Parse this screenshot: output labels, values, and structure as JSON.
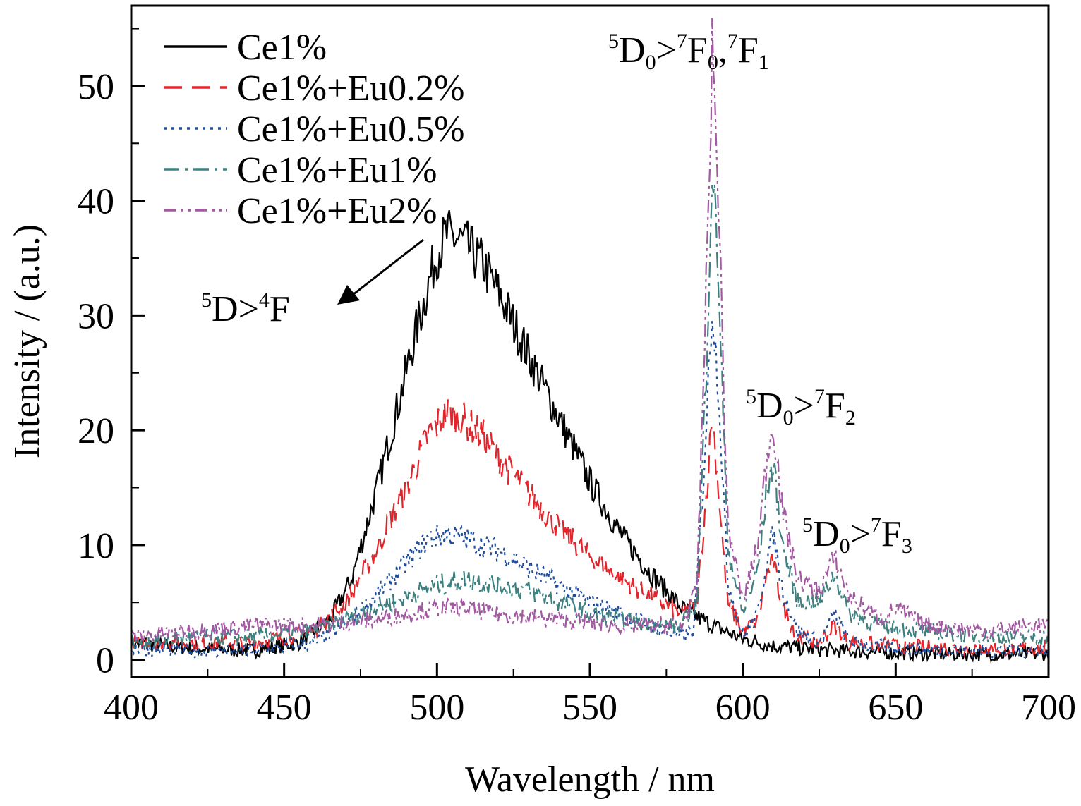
{
  "chart_data": {
    "type": "line",
    "title": "",
    "xlabel": "Wavelength / nm",
    "ylabel": "Intensity / (a.u.)",
    "xlim": [
      400,
      700
    ],
    "ylim": [
      -1.5,
      57
    ],
    "x_ticks": [
      400,
      450,
      500,
      550,
      600,
      650,
      700
    ],
    "y_ticks": [
      0,
      10,
      20,
      30,
      40,
      50
    ],
    "grid": false,
    "legend_position": "top-left",
    "series": [
      {
        "name": "Ce1%",
        "color": "#000000",
        "style": "solid",
        "points": [
          [
            400,
            1.5
          ],
          [
            420,
            1.0
          ],
          [
            440,
            0.8
          ],
          [
            455,
            1.5
          ],
          [
            465,
            3.5
          ],
          [
            472,
            7.0
          ],
          [
            480,
            14.5
          ],
          [
            488,
            23.0
          ],
          [
            494,
            29.5
          ],
          [
            500,
            35.5
          ],
          [
            503,
            37.0
          ],
          [
            508,
            36.5
          ],
          [
            515,
            34.5
          ],
          [
            522,
            31.0
          ],
          [
            530,
            26.5
          ],
          [
            540,
            21.0
          ],
          [
            550,
            15.5
          ],
          [
            560,
            11.0
          ],
          [
            570,
            7.5
          ],
          [
            580,
            4.5
          ],
          [
            590,
            3.0
          ],
          [
            600,
            1.8
          ],
          [
            610,
            1.2
          ],
          [
            630,
            0.8
          ],
          [
            650,
            0.6
          ],
          [
            670,
            0.5
          ],
          [
            700,
            0.5
          ]
        ]
      },
      {
        "name": "Ce1%+Eu0.2%",
        "color": "#e3242b",
        "style": "dashed",
        "points": [
          [
            400,
            1.5
          ],
          [
            420,
            1.5
          ],
          [
            440,
            1.5
          ],
          [
            460,
            2.5
          ],
          [
            470,
            5.0
          ],
          [
            480,
            9.5
          ],
          [
            490,
            15.0
          ],
          [
            497,
            19.5
          ],
          [
            503,
            21.5
          ],
          [
            508,
            21.0
          ],
          [
            515,
            19.5
          ],
          [
            522,
            17.0
          ],
          [
            530,
            14.5
          ],
          [
            540,
            11.5
          ],
          [
            550,
            9.0
          ],
          [
            560,
            7.0
          ],
          [
            570,
            5.5
          ],
          [
            580,
            4.0
          ],
          [
            585,
            5.0
          ],
          [
            588,
            14.0
          ],
          [
            590,
            21.5
          ],
          [
            592,
            15.0
          ],
          [
            595,
            5.0
          ],
          [
            600,
            2.5
          ],
          [
            605,
            3.5
          ],
          [
            608,
            7.5
          ],
          [
            610,
            8.5
          ],
          [
            613,
            4.5
          ],
          [
            618,
            2.0
          ],
          [
            625,
            1.5
          ],
          [
            630,
            3.0
          ],
          [
            635,
            1.5
          ],
          [
            650,
            1.2
          ],
          [
            670,
            1.0
          ],
          [
            700,
            1.0
          ]
        ]
      },
      {
        "name": "Ce1%+Eu0.5%",
        "color": "#1f4e9c",
        "style": "dotted",
        "points": [
          [
            400,
            1.0
          ],
          [
            420,
            0.8
          ],
          [
            440,
            0.8
          ],
          [
            460,
            1.5
          ],
          [
            470,
            3.0
          ],
          [
            480,
            5.5
          ],
          [
            490,
            8.5
          ],
          [
            497,
            10.5
          ],
          [
            503,
            11.0
          ],
          [
            510,
            10.5
          ],
          [
            520,
            9.5
          ],
          [
            530,
            8.0
          ],
          [
            540,
            6.5
          ],
          [
            550,
            5.0
          ],
          [
            560,
            4.0
          ],
          [
            570,
            3.0
          ],
          [
            580,
            2.0
          ],
          [
            584,
            2.5
          ],
          [
            587,
            15.0
          ],
          [
            590,
            31.0
          ],
          [
            592,
            24.0
          ],
          [
            595,
            7.0
          ],
          [
            600,
            2.0
          ],
          [
            605,
            4.0
          ],
          [
            608,
            9.0
          ],
          [
            610,
            11.0
          ],
          [
            613,
            6.0
          ],
          [
            618,
            2.5
          ],
          [
            625,
            1.5
          ],
          [
            630,
            4.0
          ],
          [
            635,
            1.5
          ],
          [
            650,
            1.0
          ],
          [
            670,
            0.8
          ],
          [
            700,
            0.8
          ]
        ]
      },
      {
        "name": "Ce1%+Eu1%",
        "color": "#3e8080",
        "style": "dashdot",
        "points": [
          [
            400,
            1.5
          ],
          [
            420,
            2.0
          ],
          [
            440,
            2.0
          ],
          [
            460,
            2.5
          ],
          [
            470,
            3.5
          ],
          [
            480,
            4.5
          ],
          [
            490,
            5.5
          ],
          [
            500,
            6.5
          ],
          [
            510,
            7.0
          ],
          [
            520,
            6.5
          ],
          [
            530,
            6.0
          ],
          [
            540,
            5.0
          ],
          [
            550,
            4.0
          ],
          [
            560,
            3.5
          ],
          [
            570,
            3.0
          ],
          [
            580,
            3.0
          ],
          [
            585,
            5.0
          ],
          [
            588,
            25.0
          ],
          [
            590,
            43.0
          ],
          [
            592,
            34.0
          ],
          [
            595,
            10.0
          ],
          [
            600,
            4.0
          ],
          [
            605,
            8.0
          ],
          [
            608,
            15.0
          ],
          [
            610,
            17.0
          ],
          [
            613,
            10.0
          ],
          [
            618,
            5.0
          ],
          [
            625,
            5.0
          ],
          [
            630,
            7.5
          ],
          [
            635,
            4.0
          ],
          [
            645,
            3.0
          ],
          [
            660,
            2.5
          ],
          [
            680,
            2.0
          ],
          [
            700,
            2.0
          ]
        ]
      },
      {
        "name": "Ce1%+Eu2%",
        "color": "#a259a2",
        "style": "dashdotdot",
        "points": [
          [
            400,
            2.0
          ],
          [
            420,
            2.5
          ],
          [
            440,
            3.0
          ],
          [
            460,
            3.0
          ],
          [
            480,
            3.5
          ],
          [
            500,
            4.5
          ],
          [
            510,
            4.5
          ],
          [
            520,
            4.0
          ],
          [
            540,
            3.5
          ],
          [
            560,
            3.0
          ],
          [
            580,
            3.0
          ],
          [
            585,
            6.0
          ],
          [
            588,
            32.0
          ],
          [
            590,
            53.0
          ],
          [
            592,
            41.0
          ],
          [
            595,
            12.0
          ],
          [
            600,
            5.0
          ],
          [
            605,
            10.0
          ],
          [
            608,
            18.0
          ],
          [
            610,
            20.5
          ],
          [
            613,
            13.0
          ],
          [
            618,
            7.0
          ],
          [
            625,
            6.0
          ],
          [
            630,
            9.0
          ],
          [
            635,
            5.5
          ],
          [
            645,
            3.5
          ],
          [
            650,
            4.5
          ],
          [
            660,
            3.0
          ],
          [
            680,
            2.5
          ],
          [
            695,
            3.0
          ],
          [
            700,
            3.0
          ]
        ]
      }
    ],
    "annotations": [
      {
        "base": "D",
        "sup_pre": "5",
        "sub": "0",
        "gt": ">",
        "base2": "F",
        "sup_pre2": "7",
        "sub2": "0",
        "sep": ",",
        "base3": "F",
        "sup_pre3": "7",
        "sub3": "1"
      },
      {
        "base": "D",
        "sup_pre": "5",
        "sub": "0",
        "gt": ">",
        "base2": "F",
        "sup_pre2": "7",
        "sub2": "2"
      },
      {
        "base": "D",
        "sup_pre": "5",
        "sub": "0",
        "gt": ">",
        "base2": "F",
        "sup_pre2": "7",
        "sub2": "3"
      },
      {
        "base": "D",
        "sup_pre": "5",
        "gt": ">",
        "base2": "F",
        "sup_pre2": "4"
      }
    ]
  }
}
